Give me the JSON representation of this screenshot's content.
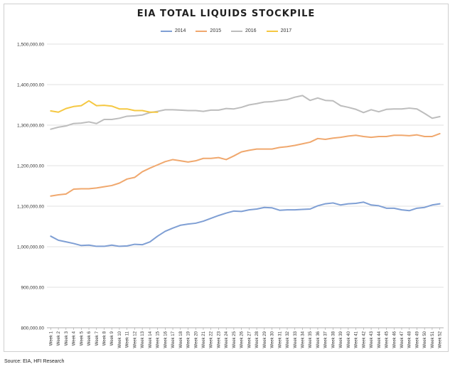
{
  "chart_data": {
    "type": "line",
    "title": "EIA TOTAL LIQUIDS STOCKPILE",
    "xlabel": "",
    "ylabel": "",
    "ylim": [
      800000,
      1500000
    ],
    "yticks": [
      800000,
      900000,
      1000000,
      1100000,
      1200000,
      1300000,
      1400000,
      1500000
    ],
    "ytick_labels": [
      "800,000.00",
      "900,000.00",
      "1,000,000.00",
      "1,100,000.00",
      "1,200,000.00",
      "1,300,000.00",
      "1,400,000.00",
      "1,500,000.00"
    ],
    "grid": true,
    "legend_position": "top-center",
    "categories": [
      "Week 1",
      "Week 2",
      "Week 3",
      "Week 4",
      "Week 5",
      "Week 6",
      "Week 7",
      "Week 8",
      "Week 9",
      "Week 10",
      "Week 11",
      "Week 12",
      "Week 13",
      "Week 14",
      "Week 15",
      "Week 16",
      "Week 17",
      "Week 18",
      "Week 19",
      "Week 20",
      "Week 21",
      "Week 22",
      "Week 23",
      "Week 24",
      "Week 25",
      "Week 26",
      "Week 27",
      "Week 28",
      "Week 29",
      "Week 30",
      "Week 31",
      "Week 32",
      "Week 33",
      "Week 34",
      "Week 35",
      "Week 36",
      "Week 37",
      "Week 38",
      "Week 39",
      "Week 40",
      "Week 41",
      "Week 42",
      "Week 43",
      "Week 44",
      "Week 45",
      "Week 46",
      "Week 47",
      "Week 48",
      "Week 49",
      "Week 50",
      "Week 51",
      "Week 52"
    ],
    "series": [
      {
        "name": "2014",
        "color": "#7f9fd4",
        "values": [
          1026000,
          1016000,
          1012000,
          1008000,
          1003000,
          1004000,
          1001000,
          1001000,
          1004000,
          1001000,
          1002000,
          1006000,
          1005000,
          1012000,
          1026000,
          1038000,
          1046000,
          1053000,
          1056000,
          1058000,
          1063000,
          1070000,
          1077000,
          1083000,
          1088000,
          1087000,
          1091000,
          1093000,
          1097000,
          1096000,
          1090000,
          1091000,
          1091000,
          1092000,
          1093000,
          1101000,
          1106000,
          1108000,
          1103000,
          1106000,
          1107000,
          1110000,
          1103000,
          1101000,
          1095000,
          1095000,
          1091000,
          1089000,
          1095000,
          1097000,
          1103000,
          1106000
        ]
      },
      {
        "name": "2015",
        "color": "#f0a86e",
        "values": [
          1125000,
          1128000,
          1130000,
          1142000,
          1143000,
          1143000,
          1145000,
          1148000,
          1151000,
          1157000,
          1167000,
          1171000,
          1185000,
          1194000,
          1202000,
          1210000,
          1215000,
          1212000,
          1209000,
          1212000,
          1218000,
          1218000,
          1220000,
          1215000,
          1224000,
          1234000,
          1238000,
          1241000,
          1241000,
          1241000,
          1245000,
          1247000,
          1250000,
          1254000,
          1258000,
          1267000,
          1265000,
          1268000,
          1270000,
          1273000,
          1275000,
          1272000,
          1270000,
          1272000,
          1272000,
          1275000,
          1275000,
          1274000,
          1276000,
          1272000,
          1272000,
          1279000
        ]
      },
      {
        "name": "2016",
        "color": "#bdbdbd",
        "values": [
          1290000,
          1295000,
          1298000,
          1304000,
          1305000,
          1308000,
          1304000,
          1314000,
          1314000,
          1317000,
          1322000,
          1323000,
          1325000,
          1331000,
          1334000,
          1338000,
          1338000,
          1337000,
          1336000,
          1336000,
          1334000,
          1337000,
          1337000,
          1341000,
          1340000,
          1344000,
          1350000,
          1353000,
          1357000,
          1358000,
          1361000,
          1363000,
          1369000,
          1373000,
          1361000,
          1367000,
          1361000,
          1360000,
          1348000,
          1344000,
          1339000,
          1331000,
          1338000,
          1333000,
          1339000,
          1340000,
          1340000,
          1342000,
          1340000,
          1329000,
          1317000,
          1321000
        ]
      },
      {
        "name": "2017",
        "color": "#f5c842",
        "values": [
          1335000,
          1332000,
          1341000,
          1346000,
          1348000,
          1360000,
          1348000,
          1349000,
          1347000,
          1340000,
          1340000,
          1336000,
          1336000,
          1332000,
          1332000,
          null,
          null,
          null,
          null,
          null,
          null,
          null,
          null,
          null,
          null,
          null,
          null,
          null,
          null,
          null,
          null,
          null,
          null,
          null,
          null,
          null,
          null,
          null,
          null,
          null,
          null,
          null,
          null,
          null,
          null,
          null,
          null,
          null,
          null,
          null,
          null,
          null
        ]
      }
    ]
  },
  "footer": {
    "source": "Source: EIA, HFI Research"
  }
}
